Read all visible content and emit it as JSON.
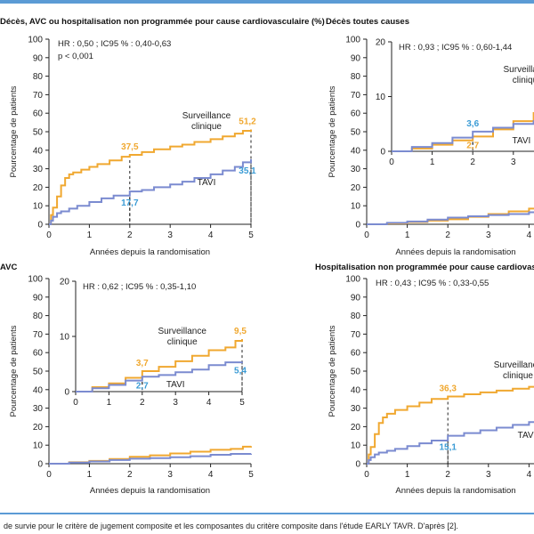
{
  "caption": "de survie pour le critère de jugement composite et les composantes du critère composite dans l'étude EARLY TAVR. D'après [2].",
  "colors": {
    "surveillance": "#f0a830",
    "tavi": "#7b8bd0",
    "label_blue": "#3a9bd5",
    "label_orange": "#f0a830",
    "axis": "#222222",
    "rule": "#5b9bd5"
  },
  "chart_data": [
    {
      "id": "composite",
      "type": "line",
      "title": "Décès, AVC ou hospitalisation non programmée pour cause cardiovasculaire (%)",
      "xlabel": "Années depuis la randomisation",
      "ylabel": "Pourcentage de patients",
      "xlim": [
        0,
        5
      ],
      "ylim": [
        0,
        100
      ],
      "xticks": [
        "0",
        "1",
        "2",
        "3",
        "4",
        "5"
      ],
      "yticks": [
        "0",
        "10",
        "20",
        "30",
        "40",
        "50",
        "60",
        "70",
        "80",
        "90",
        "100"
      ],
      "annotation_lines": [
        "HR : 0,50 ; IC95 % : 0,40-0,63",
        "p < 0,001"
      ],
      "series": [
        {
          "name": "Surveillance clinique",
          "name_lines": [
            "Surveillance",
            "clinique"
          ],
          "color": "#f0a830",
          "x": [
            0,
            0.05,
            0.1,
            0.2,
            0.3,
            0.4,
            0.5,
            0.6,
            0.8,
            1.0,
            1.2,
            1.5,
            1.8,
            2.0,
            2.3,
            2.6,
            3.0,
            3.3,
            3.6,
            4.0,
            4.3,
            4.6,
            4.8,
            5.0
          ],
          "y": [
            0,
            5,
            9,
            15,
            21,
            25,
            27,
            28,
            29.5,
            31,
            32.5,
            34.5,
            36.5,
            37.5,
            39,
            40.5,
            42,
            43,
            44.5,
            46,
            47.5,
            49,
            50.5,
            51.2
          ]
        },
        {
          "name": "TAVI",
          "name_lines": [
            "TAVI"
          ],
          "color": "#7b8bd0",
          "x": [
            0,
            0.05,
            0.1,
            0.2,
            0.3,
            0.5,
            0.7,
            1.0,
            1.3,
            1.6,
            2.0,
            2.3,
            2.6,
            3.0,
            3.3,
            3.6,
            4.0,
            4.3,
            4.6,
            4.8,
            5.0
          ],
          "y": [
            0,
            2,
            4,
            6,
            7,
            8.5,
            10,
            12,
            14,
            15.5,
            17.7,
            18.5,
            20,
            21.5,
            23,
            25,
            27,
            29,
            31,
            33.5,
            35.1
          ]
        }
      ],
      "data_labels": [
        {
          "x": 2,
          "y": 37.5,
          "text": "37,5",
          "color": "#f0a830"
        },
        {
          "x": 2,
          "y": 17.7,
          "text": "17,7",
          "color": "#3a9bd5"
        },
        {
          "x": 5,
          "y": 51.2,
          "text": "51,2",
          "color": "#f0a830"
        },
        {
          "x": 5,
          "y": 35.1,
          "text": "35,1",
          "color": "#3a9bd5"
        }
      ]
    },
    {
      "id": "deces",
      "type": "line",
      "title": "Décès toutes causes",
      "xlabel": "Années depuis la randomisation",
      "ylabel": "Pourcentage de patients",
      "xlim": [
        0,
        5
      ],
      "ylim": [
        0,
        100
      ],
      "xticks": [
        "0",
        "1",
        "2",
        "3",
        "4"
      ],
      "yticks": [
        "0",
        "10",
        "20",
        "30",
        "40",
        "50",
        "60",
        "70",
        "80",
        "90",
        "100"
      ],
      "series": [
        {
          "name": "Surveillance clinique",
          "color": "#f0a830",
          "x": [
            0,
            0.5,
            1.0,
            1.5,
            2.0,
            2.5,
            3.0,
            3.5,
            4.0,
            4.5,
            5.0
          ],
          "y": [
            0,
            0.5,
            1.2,
            2.0,
            2.7,
            4.0,
            5.5,
            7.0,
            8.5,
            9.5,
            10.5
          ]
        },
        {
          "name": "TAVI",
          "color": "#7b8bd0",
          "x": [
            0,
            0.5,
            1.0,
            1.5,
            2.0,
            2.5,
            3.0,
            3.5,
            4.0,
            4.5,
            5.0
          ],
          "y": [
            0,
            0.8,
            1.5,
            2.5,
            3.6,
            4.3,
            5.0,
            5.5,
            6.5,
            8.0,
            9.5
          ]
        }
      ],
      "inset": {
        "xlim": [
          0,
          5
        ],
        "ylim": [
          0,
          20
        ],
        "xticks": [
          "0",
          "1",
          "2",
          "3",
          "4"
        ],
        "yticks": [
          "0",
          "10",
          "20"
        ],
        "annotation_lines": [
          "HR : 0,93 ; IC95 % : 0,60-1,44"
        ],
        "series_labels": [
          {
            "lines": [
              "Surveillance",
              "clinique"
            ],
            "x": 3.35,
            "y": 14.5,
            "color": "#222"
          },
          {
            "lines": [
              "TAVI"
            ],
            "x": 3.2,
            "y": 1.5,
            "color": "#222"
          }
        ],
        "data_labels": [
          {
            "x": 2,
            "y": 3.6,
            "text": "3,6",
            "color": "#3a9bd5"
          },
          {
            "x": 2,
            "y": 2.7,
            "text": "2,7",
            "color": "#f0a830"
          }
        ]
      }
    },
    {
      "id": "avc",
      "type": "line",
      "title": "AVC",
      "xlabel": "Années depuis la randomisation",
      "ylabel": "Pourcentage de patients",
      "xlim": [
        0,
        5
      ],
      "ylim": [
        0,
        100
      ],
      "xticks": [
        "0",
        "1",
        "2",
        "3",
        "4",
        "5"
      ],
      "yticks": [
        "0",
        "10",
        "20",
        "30",
        "40",
        "50",
        "60",
        "70",
        "80",
        "90",
        "100"
      ],
      "series": [
        {
          "name": "Surveillance clinique",
          "color": "#f0a830",
          "x": [
            0,
            0.5,
            1.0,
            1.5,
            2.0,
            2.5,
            3.0,
            3.5,
            4.0,
            4.5,
            4.8,
            5.0
          ],
          "y": [
            0,
            0.8,
            1.5,
            2.5,
            3.7,
            4.5,
            5.5,
            6.5,
            7.5,
            8.0,
            9.2,
            9.5
          ]
        },
        {
          "name": "TAVI",
          "color": "#7b8bd0",
          "x": [
            0,
            0.5,
            1.0,
            1.5,
            2.0,
            2.5,
            3.0,
            3.5,
            4.0,
            4.5,
            5.0
          ],
          "y": [
            0,
            0.6,
            1.2,
            2.0,
            2.7,
            3.0,
            3.5,
            4.0,
            4.8,
            5.3,
            5.4
          ]
        }
      ],
      "inset": {
        "xlim": [
          0,
          5
        ],
        "ylim": [
          0,
          20
        ],
        "xticks": [
          "0",
          "1",
          "2",
          "3",
          "4",
          "5"
        ],
        "yticks": [
          "0",
          "10",
          "20"
        ],
        "annotation_lines": [
          "HR : 0,62 ; IC95 % : 0,35-1,10"
        ],
        "series_labels": [
          {
            "lines": [
              "Surveillance",
              "clinique"
            ],
            "x": 3.2,
            "y": 10.5,
            "color": "#222"
          },
          {
            "lines": [
              "TAVI"
            ],
            "x": 3.0,
            "y": 0.8,
            "color": "#222"
          }
        ],
        "data_labels": [
          {
            "x": 2,
            "y": 3.7,
            "text": "3,7",
            "color": "#f0a830"
          },
          {
            "x": 2,
            "y": 2.7,
            "text": "2,7",
            "color": "#3a9bd5"
          },
          {
            "x": 5,
            "y": 9.5,
            "text": "9,5",
            "color": "#f0a830"
          },
          {
            "x": 5,
            "y": 5.4,
            "text": "5,4",
            "color": "#3a9bd5"
          }
        ]
      }
    },
    {
      "id": "hospitalisation",
      "type": "line",
      "title": "Hospitalisation non programmée pour cause cardiovasculaire",
      "xlabel": "Années depuis la randomisation",
      "ylabel": "Pourcentage de patients",
      "xlim": [
        0,
        5
      ],
      "ylim": [
        0,
        100
      ],
      "xticks": [
        "0",
        "1",
        "2",
        "3",
        "4"
      ],
      "yticks": [
        "0",
        "10",
        "20",
        "30",
        "40",
        "50",
        "60",
        "70",
        "80",
        "90",
        "100"
      ],
      "annotation_lines": [
        "HR : 0,43 ; IC95 % : 0,33-0,55"
      ],
      "series": [
        {
          "name": "Surveillance clinique",
          "name_lines": [
            "Surveillance",
            "clinique"
          ],
          "color": "#f0a830",
          "x": [
            0,
            0.05,
            0.1,
            0.2,
            0.3,
            0.4,
            0.5,
            0.7,
            1.0,
            1.3,
            1.6,
            2.0,
            2.4,
            2.8,
            3.2,
            3.6,
            4.0,
            4.5,
            5.0
          ],
          "y": [
            0,
            5,
            9,
            16,
            22,
            25,
            27,
            29,
            31,
            33,
            35,
            36.3,
            37.5,
            38.5,
            39.5,
            40.5,
            41.5,
            42.5,
            43.5
          ]
        },
        {
          "name": "TAVI",
          "name_lines": [
            "TAVI"
          ],
          "color": "#7b8bd0",
          "x": [
            0,
            0.05,
            0.1,
            0.2,
            0.3,
            0.5,
            0.7,
            1.0,
            1.3,
            1.6,
            2.0,
            2.4,
            2.8,
            3.2,
            3.6,
            4.0,
            4.5,
            5.0
          ],
          "y": [
            0,
            2,
            3.5,
            5,
            6,
            7,
            8,
            9.5,
            11,
            12.5,
            15.1,
            16.5,
            18,
            19.5,
            21,
            22.5,
            24,
            25
          ]
        }
      ],
      "data_labels": [
        {
          "x": 2,
          "y": 36.3,
          "text": "36,3",
          "color": "#f0a830"
        },
        {
          "x": 2,
          "y": 15.1,
          "text": "15,1",
          "color": "#3a9bd5"
        }
      ]
    }
  ]
}
